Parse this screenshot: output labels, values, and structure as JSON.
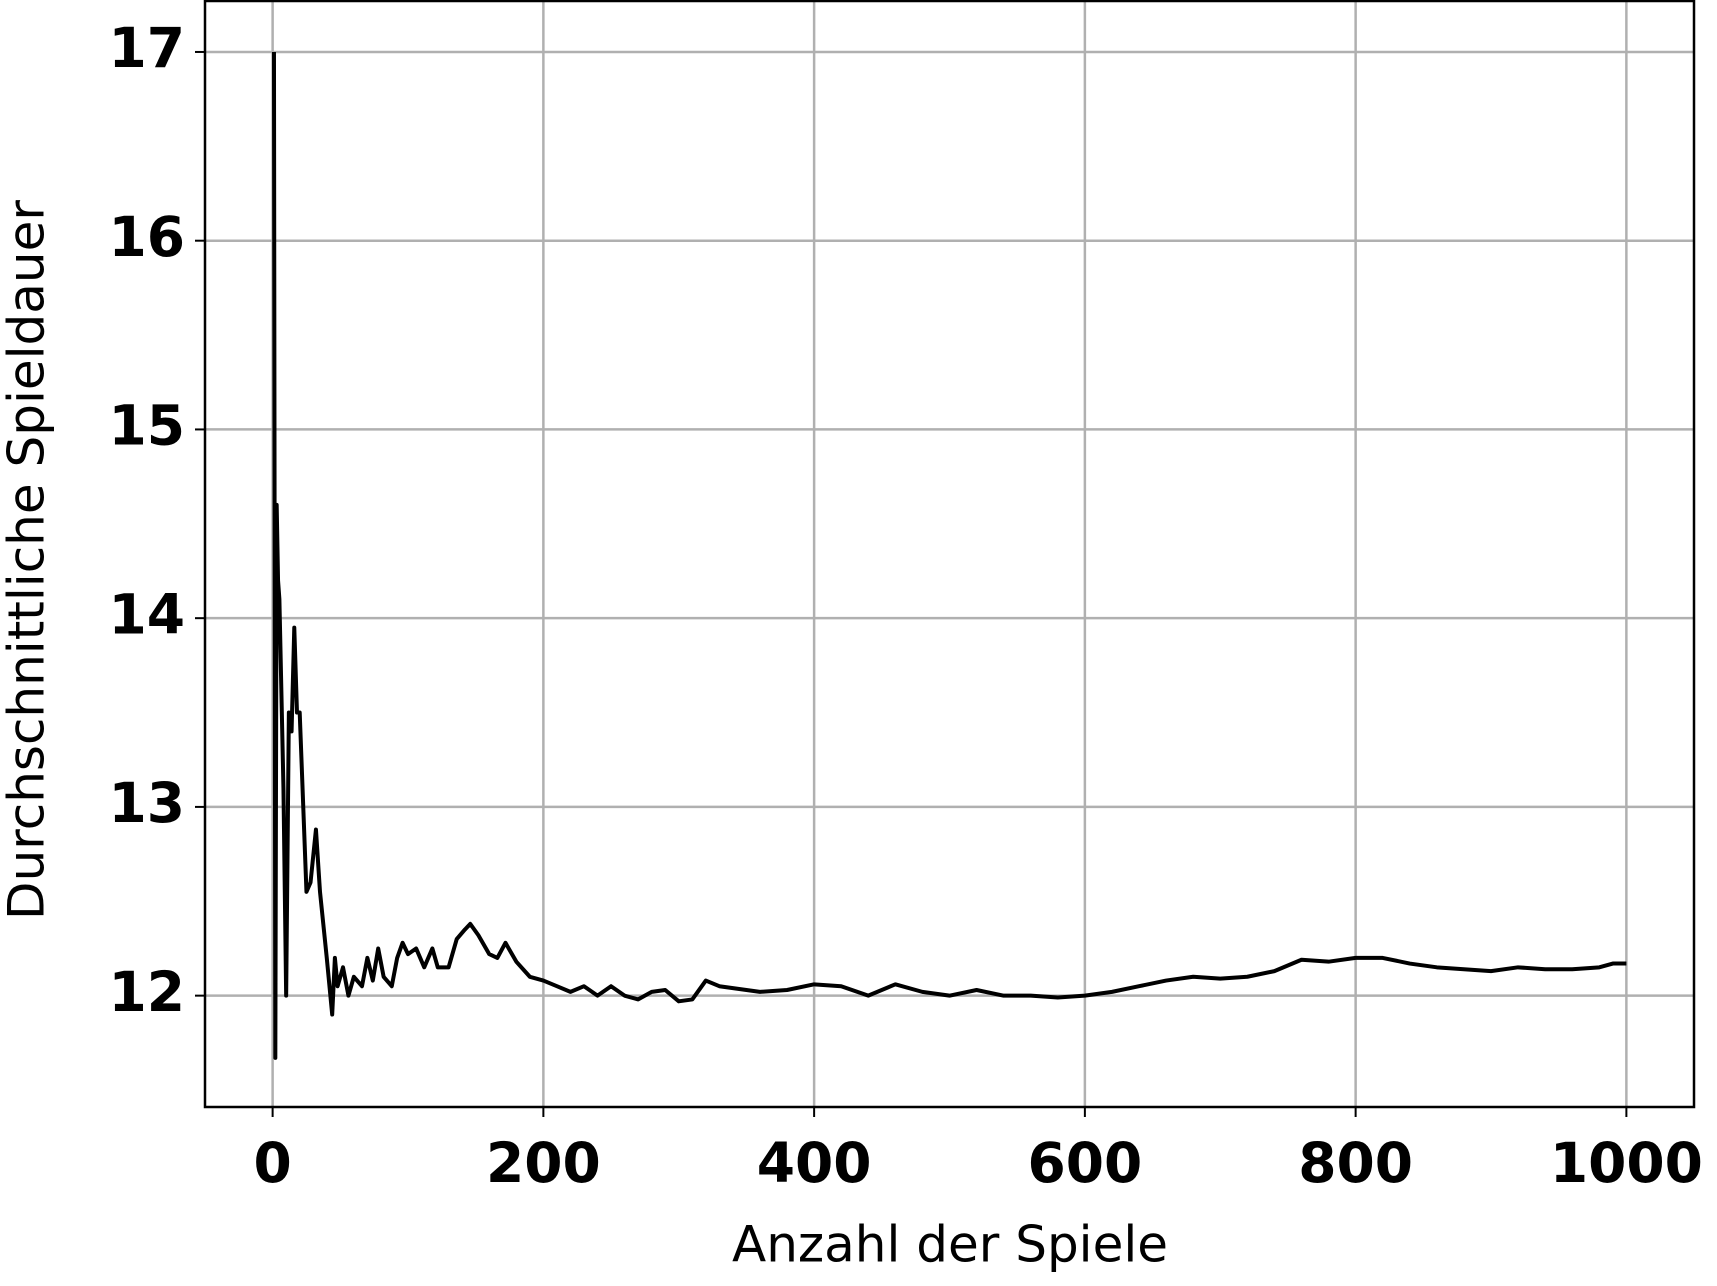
{
  "chart_data": {
    "type": "line",
    "x_label": "Anzahl der Spiele",
    "y_label": "Durchschnittliche Spieldauer",
    "x": [
      1,
      2,
      3,
      4,
      5,
      8,
      10,
      12,
      14,
      16,
      18,
      20,
      25,
      28,
      32,
      35,
      40,
      44,
      46,
      48,
      52,
      56,
      60,
      66,
      70,
      74,
      78,
      82,
      88,
      92,
      96,
      100,
      106,
      112,
      118,
      122,
      130,
      136,
      142,
      146,
      152,
      160,
      166,
      172,
      180,
      190,
      200,
      210,
      220,
      230,
      240,
      250,
      260,
      270,
      280,
      290,
      300,
      310,
      320,
      330,
      340,
      360,
      380,
      400,
      420,
      440,
      460,
      480,
      500,
      520,
      540,
      560,
      580,
      600,
      620,
      640,
      660,
      680,
      700,
      720,
      740,
      760,
      780,
      800,
      820,
      840,
      860,
      880,
      900,
      920,
      940,
      960,
      980,
      990,
      1000
    ],
    "series": [
      {
        "color": "#000000",
        "values": [
          17,
          11.67,
          14.6,
          14.2,
          14.1,
          13.1,
          12.0,
          13.5,
          13.4,
          13.95,
          13.5,
          13.5,
          12.55,
          12.6,
          12.88,
          12.55,
          12.2,
          11.9,
          12.2,
          12.05,
          12.15,
          12.0,
          12.1,
          12.05,
          12.2,
          12.08,
          12.25,
          12.1,
          12.05,
          12.2,
          12.28,
          12.22,
          12.25,
          12.15,
          12.25,
          12.15,
          12.15,
          12.3,
          12.35,
          12.38,
          12.32,
          12.22,
          12.2,
          12.28,
          12.18,
          12.1,
          12.08,
          12.05,
          12.02,
          12.05,
          12.0,
          12.05,
          12.0,
          11.98,
          12.02,
          12.03,
          11.97,
          11.98,
          12.08,
          12.05,
          12.04,
          12.02,
          12.03,
          12.06,
          12.05,
          12.0,
          12.06,
          12.02,
          12.0,
          12.03,
          12.0,
          12.0,
          11.99,
          12.0,
          12.02,
          12.05,
          12.08,
          12.1,
          12.09,
          12.1,
          12.13,
          12.19,
          12.18,
          12.2,
          12.2,
          12.17,
          12.15,
          12.14,
          12.13,
          12.15,
          12.14,
          12.14,
          12.15,
          12.17,
          12.17
        ]
      }
    ],
    "xlim": [
      -49.95,
      1049.95
    ],
    "ylim": [
      11.41,
      17.27
    ],
    "xticks": [
      0,
      200,
      400,
      600,
      800,
      1000
    ],
    "yticks": [
      12,
      13,
      14,
      15,
      16,
      17
    ],
    "grid": true
  }
}
